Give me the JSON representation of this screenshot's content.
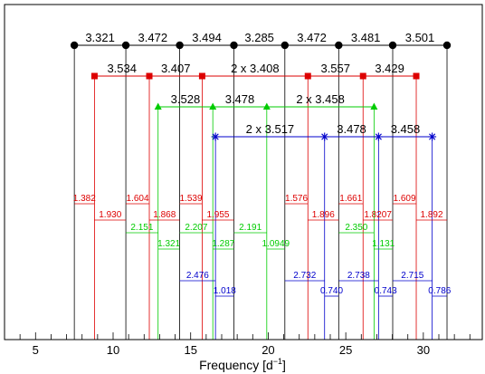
{
  "chart_data": {
    "type": "frequency-spacing-diagram",
    "title": "",
    "xlabel": "Frequency [d",
    "xlabel_sup": "−1",
    "xlabel_close": "]",
    "xlim": [
      3,
      33.8
    ],
    "xticks": [
      5,
      10,
      15,
      20,
      25,
      30
    ],
    "tick_labels": [
      "5",
      "10",
      "15",
      "20",
      "25",
      "30"
    ],
    "grid": false,
    "legend": "none",
    "groups": [
      {
        "color": "#000000",
        "marker": "circle",
        "frequencies": [
          7.5,
          10.821,
          14.293,
          17.787,
          21.072,
          24.544,
          28.025,
          31.526
        ],
        "spacings": [
          "3.321",
          "3.472",
          "3.494",
          "3.285",
          "3.472",
          "3.481",
          "3.501"
        ]
      },
      {
        "color": "#dd0000",
        "marker": "square",
        "frequencies": [
          8.8,
          12.334,
          15.741,
          22.557,
          26.114,
          29.543
        ],
        "spacings": [
          "3.534",
          "3.407",
          "2 x 3.408",
          "3.557",
          "3.429"
        ]
      },
      {
        "color": "#00cc00",
        "marker": "triangle",
        "frequencies": [
          12.9,
          16.428,
          19.906,
          26.822
        ],
        "spacings": [
          "3.528",
          "3.478",
          "2 x 3.458"
        ]
      },
      {
        "color": "#0000cc",
        "marker": "star",
        "frequencies": [
          16.6,
          23.634,
          27.112,
          30.57
        ],
        "spacings": [
          "2 x 3.517",
          "3.478",
          "3.458"
        ]
      }
    ],
    "distance_ladders": [
      {
        "color": "#dd0000",
        "pairs": [
          {
            "value": "1.382",
            "from": 7.5,
            "to": 8.8
          },
          {
            "value": "1.930",
            "from": 8.8,
            "to": 10.821
          },
          {
            "value": "1.604",
            "from": 10.821,
            "to": 12.334
          },
          {
            "value": "1.868",
            "from": 12.334,
            "to": 14.293
          },
          {
            "value": "1.539",
            "from": 14.293,
            "to": 15.741
          },
          {
            "value": "1.955",
            "from": 15.741,
            "to": 17.787
          },
          {
            "value": "1.576",
            "from": 21.072,
            "to": 22.557
          },
          {
            "value": "1.896",
            "from": 22.557,
            "to": 24.544
          },
          {
            "value": "1.661",
            "from": 24.544,
            "to": 26.114
          },
          {
            "value": "1.8207",
            "from": 26.114,
            "to": 28.025
          },
          {
            "value": "1.609",
            "from": 28.025,
            "to": 29.543
          },
          {
            "value": "1.892",
            "from": 29.543,
            "to": 31.526
          }
        ]
      },
      {
        "color": "#00cc00",
        "pairs": [
          {
            "value": "2.151",
            "from": 10.821,
            "to": 12.9
          },
          {
            "value": "1.321",
            "from": 12.9,
            "to": 14.293
          },
          {
            "value": "2.207",
            "from": 14.293,
            "to": 16.428
          },
          {
            "value": "1.287",
            "from": 16.428,
            "to": 17.787
          },
          {
            "value": "2.191",
            "from": 17.787,
            "to": 19.906
          },
          {
            "value": "1.0949",
            "from": 19.906,
            "to": 21.072
          },
          {
            "value": "2.350",
            "from": 24.544,
            "to": 26.822
          },
          {
            "value": "1.131",
            "from": 26.822,
            "to": 28.025
          }
        ]
      },
      {
        "color": "#0000cc",
        "pairs": [
          {
            "value": "2.476",
            "from": 14.293,
            "to": 16.6
          },
          {
            "value": "1.018",
            "from": 16.6,
            "to": 17.787
          },
          {
            "value": "2.732",
            "from": 21.072,
            "to": 23.634
          },
          {
            "value": "0.740",
            "from": 23.634,
            "to": 24.544
          },
          {
            "value": "2.738",
            "from": 24.544,
            "to": 27.112
          },
          {
            "value": "0.743",
            "from": 27.112,
            "to": 28.025
          },
          {
            "value": "2.715",
            "from": 28.025,
            "to": 30.57
          },
          {
            "value": "0.786",
            "from": 30.57,
            "to": 31.526
          }
        ]
      }
    ]
  }
}
